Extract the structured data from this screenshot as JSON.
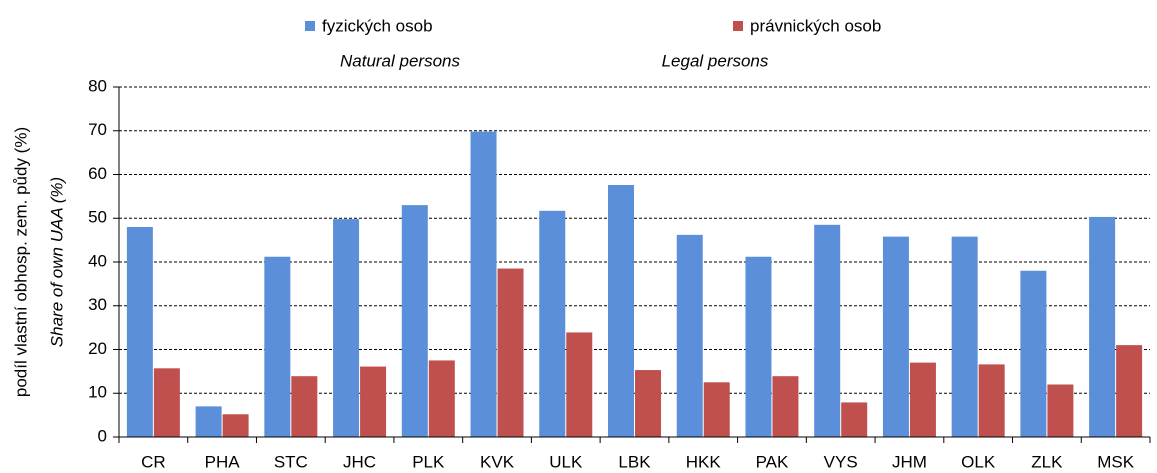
{
  "chart_data": {
    "type": "bar",
    "ylabel": "podíl vlastní obhosp. zem. půdy (%)",
    "ylabel_en": "Share of own UAA (%)",
    "categories": [
      "CR",
      "PHA",
      "STC",
      "JHC",
      "PLK",
      "KVK",
      "ULK",
      "LBK",
      "HKK",
      "PAK",
      "VYS",
      "JHM",
      "OLK",
      "ZLK",
      "MSK"
    ],
    "series": [
      {
        "name": "fyzických osob",
        "name_en": "Natural persons",
        "color": "#5b8fd9",
        "values": [
          48,
          7,
          41.2,
          49.8,
          53,
          69.8,
          51.7,
          57.6,
          46.2,
          41.2,
          48.5,
          45.8,
          45.8,
          38,
          50.3
        ]
      },
      {
        "name": "právnických osob",
        "name_en": "Legal persons",
        "color": "#c0504d",
        "values": [
          15.7,
          5.2,
          13.9,
          16.1,
          17.5,
          38.5,
          23.9,
          15.3,
          12.5,
          13.9,
          7.9,
          17,
          16.6,
          12,
          21
        ]
      }
    ],
    "ylim": [
      0,
      80
    ],
    "yticks": [
      0,
      10,
      20,
      30,
      40,
      50,
      60,
      70,
      80
    ],
    "grid": true
  }
}
